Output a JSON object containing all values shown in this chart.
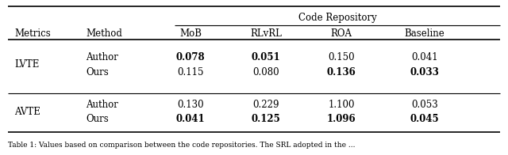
{
  "col_group_header": "Code Repository",
  "col_headers_left": [
    "Metrics",
    "Method"
  ],
  "col_headers_right": [
    "MoB",
    "RLvRL",
    "ROA",
    "Baseline"
  ],
  "rows": [
    {
      "metric": "LVTE",
      "method": "Author",
      "values": [
        "0.078",
        "0.051",
        "0.150",
        "0.041"
      ],
      "bold": [
        true,
        true,
        false,
        false
      ]
    },
    {
      "metric": "",
      "method": "Ours",
      "values": [
        "0.115",
        "0.080",
        "0.136",
        "0.033"
      ],
      "bold": [
        false,
        false,
        true,
        true
      ]
    },
    {
      "metric": "AVTE",
      "method": "Author",
      "values": [
        "0.130",
        "0.229",
        "1.100",
        "0.053"
      ],
      "bold": [
        false,
        false,
        false,
        false
      ]
    },
    {
      "metric": "",
      "method": "Ours",
      "values": [
        "0.041",
        "0.125",
        "1.096",
        "0.045"
      ],
      "bold": [
        true,
        true,
        true,
        true
      ]
    }
  ],
  "caption": "Table 1: Values based on comparison between the code repositories. The SRL adopted in the ...",
  "bg_color": "#ffffff",
  "text_color": "#000000",
  "font_size": 8.5,
  "caption_font_size": 6.5
}
